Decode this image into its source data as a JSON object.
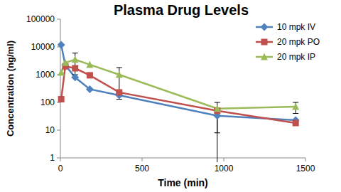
{
  "chart_data": {
    "type": "line",
    "title": "Plasma Drug Levels",
    "x_label": "Time (min)",
    "y_label": "Concentration (ng/ml)",
    "x": [
      5,
      30,
      90,
      180,
      360,
      960,
      1440
    ],
    "series": [
      {
        "name": "10 mpk IV",
        "color": "#4f81bd",
        "marker": "diamond",
        "values": [
          12000,
          2200,
          800,
          300,
          180,
          33,
          23
        ],
        "errors": [
          null,
          null,
          null,
          null,
          50,
          25,
          null
        ]
      },
      {
        "name": "20 mpk PO",
        "color": "#c0504d",
        "marker": "square",
        "values": [
          130,
          2000,
          1700,
          950,
          230,
          50,
          18
        ],
        "errors": [
          null,
          null,
          null,
          null,
          null,
          50,
          null
        ]
      },
      {
        "name": "20 mpk IP",
        "color": "#9bbb59",
        "marker": "triangle",
        "values": [
          1200,
          2700,
          3500,
          2300,
          1000,
          60,
          70
        ],
        "errors": [
          null,
          null,
          2500,
          null,
          800,
          null,
          30
        ]
      }
    ],
    "xlim": [
      0,
      1500
    ],
    "xticks": [
      0,
      500,
      1000,
      1500
    ],
    "ylim": [
      1,
      100000
    ],
    "yticks": [
      1,
      10,
      100,
      1000,
      10000,
      100000
    ],
    "log": "y",
    "grid": false,
    "legend": "top-right"
  }
}
